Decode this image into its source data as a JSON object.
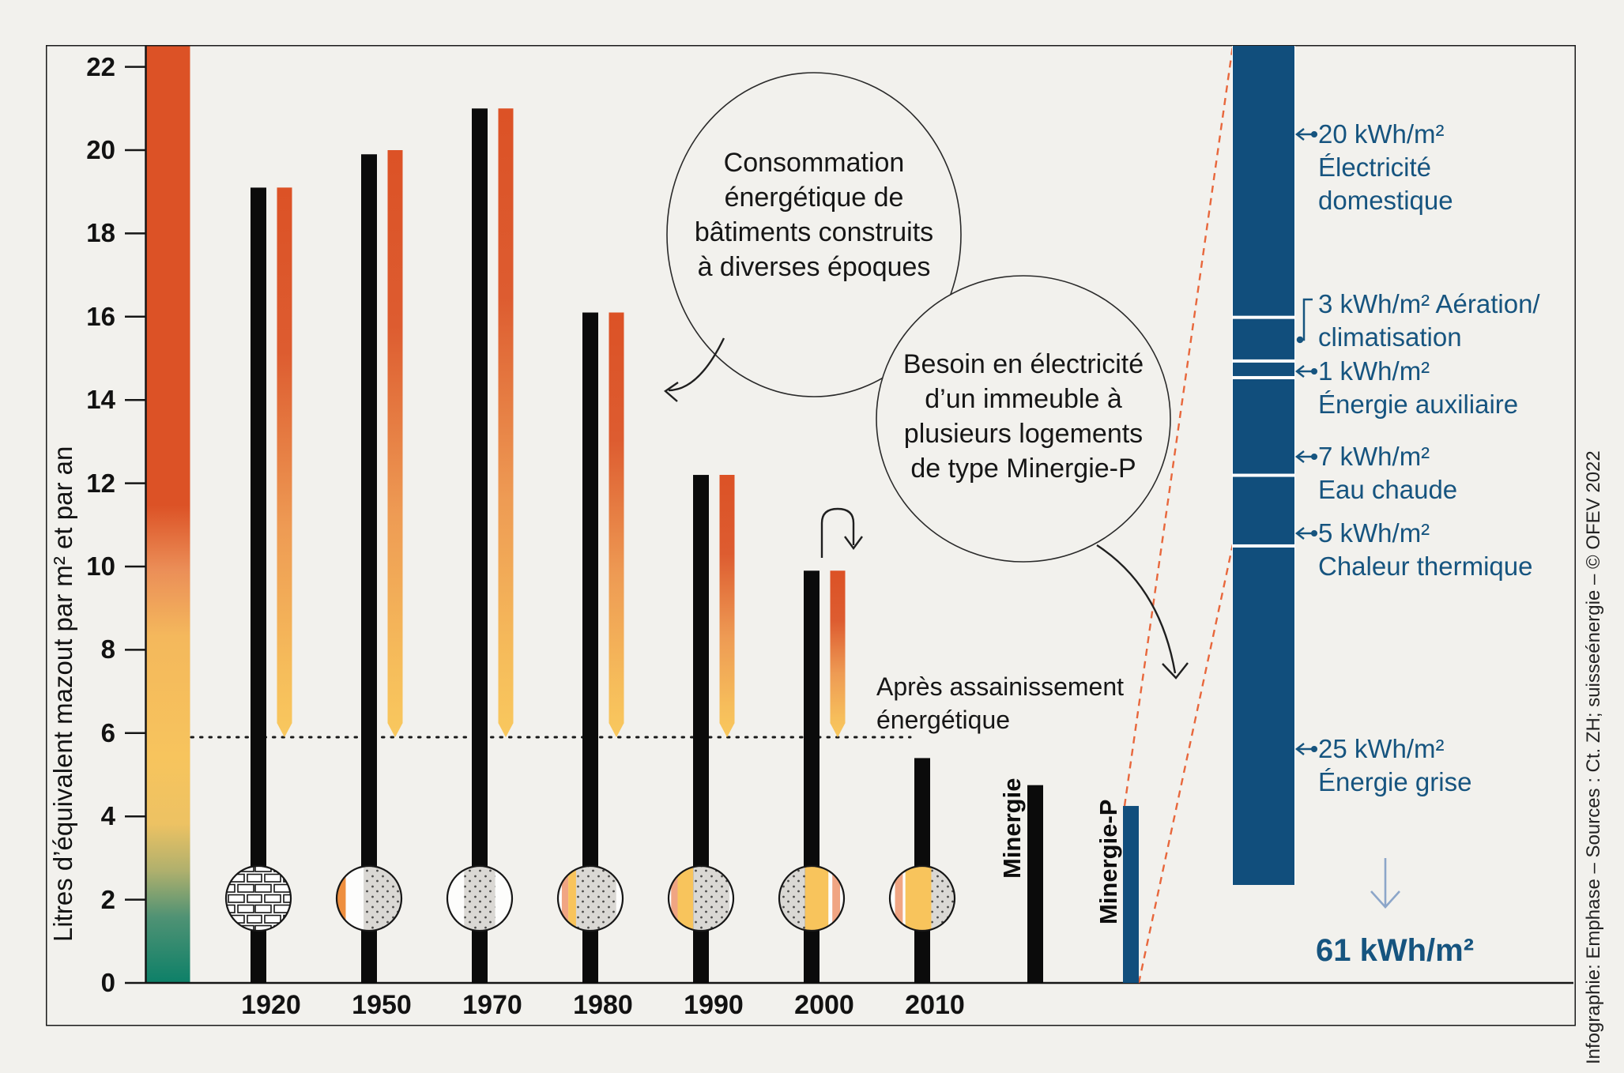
{
  "colors": {
    "background": "#f2f1ed",
    "black_bar": "#0b0b0b",
    "orange": "#dc5226",
    "yellow": "#f8c45c",
    "teal": "#0d8068",
    "blue_bar": "#114e7c",
    "label_blue": "#16547f",
    "dashed_orange": "#e8673c",
    "arrow_light_blue": "#8ca6c9",
    "concrete_gray": "#dad8d4",
    "salmon": "#f0a583",
    "wood_orange": "#ee8f3f"
  },
  "chart_data": [
    {
      "type": "bar",
      "title": "Consommation énergétique de bâtiments construits à diverses époques",
      "ylabel": "Litres d’équivalent mazout par m² et par an",
      "ylim": [
        0,
        22
      ],
      "y_ticks": [
        0,
        2,
        4,
        6,
        8,
        10,
        12,
        14,
        16,
        18,
        20,
        22
      ],
      "grid": false,
      "categories": [
        "1920",
        "1950",
        "1970",
        "1980",
        "1990",
        "2000",
        "2010",
        "Minergie",
        "Minergie-P"
      ],
      "series": [
        {
          "name": "Consommation énergétique",
          "color": "#0b0b0b",
          "values": [
            19.1,
            19.9,
            21.0,
            16.1,
            12.2,
            9.9,
            5.4,
            4.75,
            4.25
          ]
        },
        {
          "name": "Après assainissement énergétique",
          "color": "#dc5226",
          "values": [
            19.1,
            20.0,
            21.0,
            16.1,
            12.2,
            9.9,
            null,
            null,
            null
          ]
        }
      ],
      "renovated_level": 5.9
    },
    {
      "type": "bar",
      "subtype": "stacked",
      "title": "Besoin en électricité d’un immeuble à plusieurs logements de type Minergie-P",
      "unit": "kWh/m²",
      "segments": [
        {
          "kwh": 20,
          "value_label": "20 kWh/m²",
          "lines": [
            "Électricité",
            "domestique"
          ]
        },
        {
          "kwh": 3,
          "value_label": "3 kWh/m² Aération/",
          "lines": [
            "climatisation"
          ]
        },
        {
          "kwh": 1,
          "value_label": "1 kWh/m²",
          "lines": [
            "Énergie auxiliaire"
          ]
        },
        {
          "kwh": 7,
          "value_label": "7 kWh/m²",
          "lines": [
            "Eau chaude"
          ]
        },
        {
          "kwh": 5,
          "value_label": "5 kWh/m²",
          "lines": [
            "Chaleur thermique"
          ]
        },
        {
          "kwh": 25,
          "value_label": "25 kWh/m²",
          "lines": [
            "Énergie grise"
          ]
        }
      ],
      "total": 61,
      "total_label": "61 kWh/m²"
    }
  ],
  "bubbles": {
    "b1": {
      "line1": "Consommation",
      "line2": "énergétique de",
      "line3": "bâtiments construits",
      "line4": "à diverses époques"
    },
    "b2": {
      "line1": "Besoin en électricité",
      "line2": "d’un immeuble à",
      "line3": "plusieurs logements",
      "line4": "de type Minergie-P"
    }
  },
  "after_renovation": {
    "line1": "Après assainissement",
    "line2": "énergétique"
  },
  "wall_circles": [
    {
      "year": "1920",
      "stripes": [
        [
          "brick",
          100
        ]
      ]
    },
    {
      "year": "1950",
      "stripes": [
        [
          "wood",
          14
        ],
        [
          "white",
          28
        ],
        [
          "concrete",
          58
        ]
      ]
    },
    {
      "year": "1970",
      "stripes": [
        [
          "white",
          26
        ],
        [
          "concrete",
          48
        ],
        [
          "white",
          26
        ]
      ]
    },
    {
      "year": "1980",
      "stripes": [
        [
          "white",
          6
        ],
        [
          "salmon",
          10
        ],
        [
          "yellow",
          12
        ],
        [
          "concrete",
          62
        ],
        [
          "white",
          10
        ]
      ]
    },
    {
      "year": "1990",
      "stripes": [
        [
          "white",
          4
        ],
        [
          "salmon",
          10
        ],
        [
          "yellow",
          24
        ],
        [
          "concrete",
          56
        ],
        [
          "white",
          6
        ]
      ]
    },
    {
      "year": "2000",
      "stripes": [
        [
          "concrete",
          40
        ],
        [
          "yellow",
          36
        ],
        [
          "white",
          6
        ],
        [
          "salmon",
          12
        ],
        [
          "white",
          6
        ]
      ]
    },
    {
      "year": "2010",
      "stripes": [
        [
          "white",
          8
        ],
        [
          "salmon",
          12
        ],
        [
          "white",
          4
        ],
        [
          "yellow",
          40
        ],
        [
          "concrete",
          36
        ]
      ]
    }
  ],
  "credit": "Infographie: Emphase – Sources : Ct. ZH; suisseénergie – © OFEV 2022"
}
